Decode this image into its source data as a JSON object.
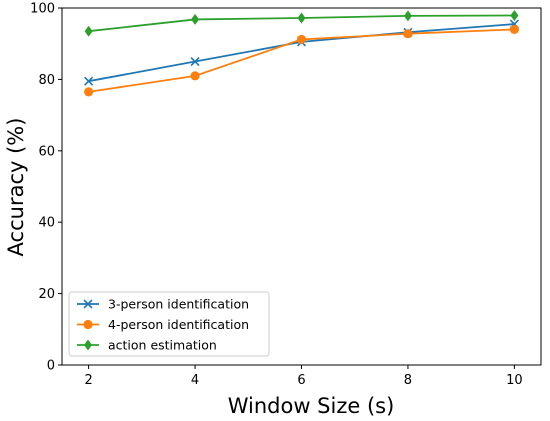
{
  "chart_data": {
    "type": "line",
    "title": "",
    "xlabel": "Window Size (s)",
    "ylabel": "Accuracy (%)",
    "x": [
      2,
      4,
      6,
      8,
      10
    ],
    "xticks": [
      "2",
      "4",
      "6",
      "8",
      "10"
    ],
    "yticks": [
      "0",
      "20",
      "40",
      "60",
      "80",
      "100"
    ],
    "xlim": [
      1.5,
      10.5
    ],
    "ylim": [
      0,
      100
    ],
    "grid": false,
    "legend_position": "bottom-left",
    "series": [
      {
        "name": "3-person identification",
        "color": "#1f77b4",
        "marker": "x",
        "values": [
          79.5,
          85.0,
          90.5,
          93.2,
          95.5
        ]
      },
      {
        "name": "4-person identification",
        "color": "#ff7f0e",
        "marker": "circle",
        "values": [
          76.5,
          81.0,
          91.2,
          92.8,
          94.0
        ]
      },
      {
        "name": "action estimation",
        "color": "#2ca02c",
        "marker": "diamond",
        "values": [
          93.5,
          96.8,
          97.2,
          97.8,
          97.9
        ]
      }
    ]
  }
}
